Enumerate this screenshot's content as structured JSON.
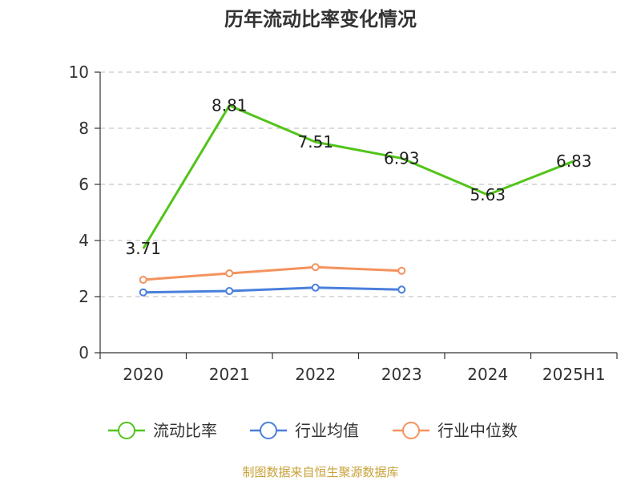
{
  "chart_data": {
    "type": "line",
    "title": "历年流动比率变化情况",
    "categories": [
      "2020",
      "2021",
      "2022",
      "2023",
      "2024",
      "2025H1"
    ],
    "ylim": [
      0,
      10
    ],
    "yticks": [
      0,
      2,
      4,
      6,
      8,
      10
    ],
    "grid": true,
    "legend_position": "bottom",
    "series": [
      {
        "name": "流动比率",
        "values": [
          3.71,
          8.81,
          7.51,
          6.93,
          5.63,
          6.83
        ],
        "color": "#52c41a",
        "markers": false,
        "labels": true
      },
      {
        "name": "行业均值",
        "values": [
          2.15,
          2.2,
          2.32,
          2.25,
          null,
          null
        ],
        "color": "#4a7fdc",
        "markers": true,
        "labels": false
      },
      {
        "name": "行业中位数",
        "values": [
          2.6,
          2.83,
          3.05,
          2.92,
          null,
          null
        ],
        "color": "#f5925e",
        "markers": true,
        "labels": false
      }
    ]
  },
  "source": "制图数据来自恒生聚源数据库"
}
